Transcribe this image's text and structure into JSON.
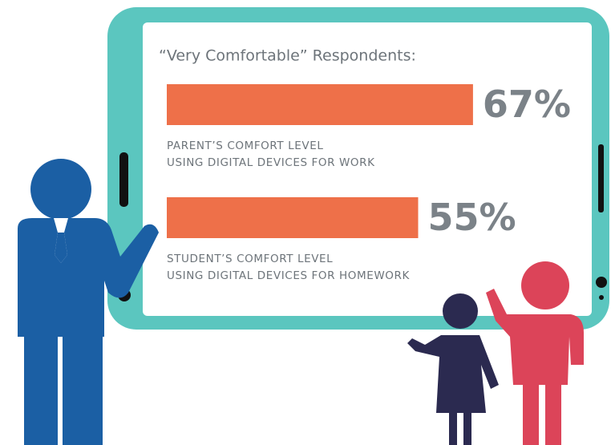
{
  "chart_data": {
    "type": "bar",
    "title": "“Very Comfortable” Respondents:",
    "categories": [
      [
        "PARENT’S COMFORT LEVEL",
        "USING DIGITAL DEVICES FOR WORK"
      ],
      [
        "STUDENT’S COMFORT LEVEL",
        "USING DIGITAL DEVICES FOR HOMEWORK"
      ]
    ],
    "values": [
      67,
      55
    ],
    "value_labels": [
      "67%",
      "55%"
    ],
    "color": "#ee7049"
  }
}
